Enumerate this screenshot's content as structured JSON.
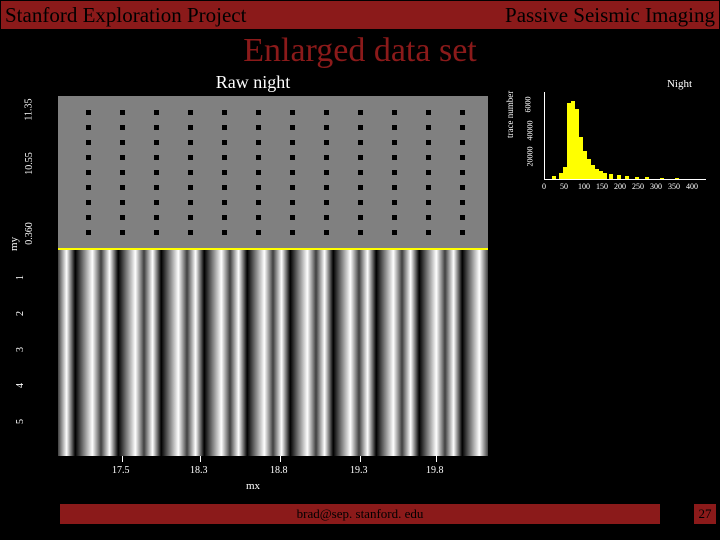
{
  "header": {
    "left": "Stanford Exploration Project",
    "right": "Passive Seismic Imaging"
  },
  "title": "Enlarged data set",
  "main_chart": {
    "title": "Raw night",
    "ylabel": "my",
    "xlabel": "mx",
    "yticks": [
      "11.35",
      "10.55",
      "0.360",
      "1",
      "2",
      "3",
      "4",
      "5"
    ],
    "ytick_positions": [
      32,
      86,
      156,
      200,
      236,
      272,
      308,
      344
    ],
    "xticks": [
      "17.5",
      "18.3",
      "18.8",
      "19.3",
      "19.8"
    ],
    "xtick_positions": [
      64,
      142,
      222,
      302,
      378
    ],
    "background_color": "#808080",
    "dot_rows": 9,
    "dot_cols": 12,
    "dot_start_x": 28,
    "dot_start_y": 14,
    "dot_spacing_x": 34,
    "dot_spacing_y": 15
  },
  "histogram": {
    "title": "Night",
    "ylabel": "trace number",
    "yticks": [
      "20000",
      "40000",
      "6000"
    ],
    "ytick_positions": [
      74,
      48,
      22
    ],
    "xticks": [
      "0",
      "50",
      "100",
      "150",
      "200",
      "250",
      "300",
      "350",
      "400"
    ],
    "data": [
      {
        "x": 0,
        "h": 0
      },
      {
        "x": 7,
        "h": 3
      },
      {
        "x": 14,
        "h": 6
      },
      {
        "x": 18,
        "h": 12
      },
      {
        "x": 22,
        "h": 76
      },
      {
        "x": 26,
        "h": 78
      },
      {
        "x": 30,
        "h": 70
      },
      {
        "x": 34,
        "h": 42
      },
      {
        "x": 38,
        "h": 28
      },
      {
        "x": 42,
        "h": 20
      },
      {
        "x": 46,
        "h": 14
      },
      {
        "x": 50,
        "h": 10
      },
      {
        "x": 54,
        "h": 8
      },
      {
        "x": 58,
        "h": 6
      },
      {
        "x": 64,
        "h": 5
      },
      {
        "x": 72,
        "h": 4
      },
      {
        "x": 80,
        "h": 3
      },
      {
        "x": 90,
        "h": 2
      },
      {
        "x": 100,
        "h": 2
      },
      {
        "x": 115,
        "h": 1
      },
      {
        "x": 130,
        "h": 1
      },
      {
        "x": 145,
        "h": 0
      }
    ],
    "bar_color": "#ffff00"
  },
  "footer": {
    "email": "brad@sep. stanford. edu",
    "page": "27"
  }
}
